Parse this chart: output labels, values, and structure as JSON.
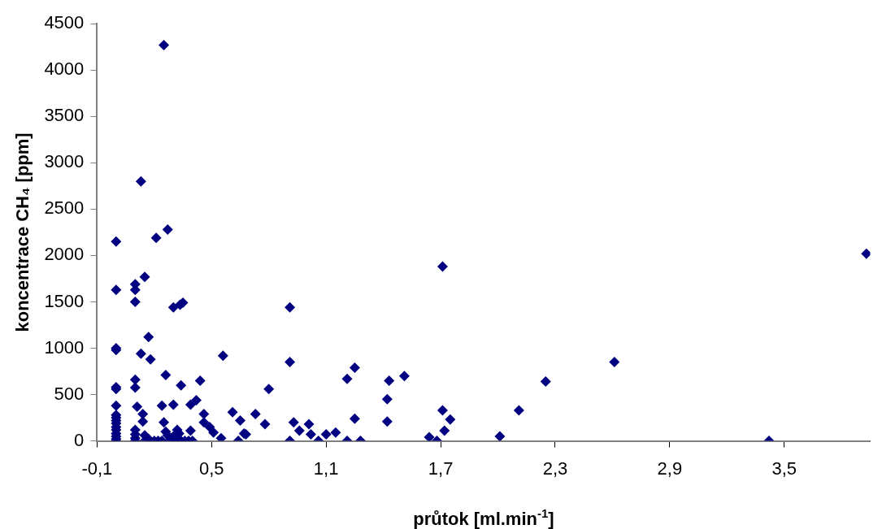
{
  "chart_data": {
    "type": "scatter",
    "xlabel": "průtok [ml.min$^{-1}$]",
    "ylabel": "koncentrace CH₄ [ppm]",
    "xlim": [
      -0.1,
      3.95
    ],
    "xticks": [
      {
        "value": -0.1,
        "label": "-0,1"
      },
      {
        "value": 0.5,
        "label": "0,5"
      },
      {
        "value": 1.1,
        "label": "1,1"
      },
      {
        "value": 1.7,
        "label": "1,7"
      },
      {
        "value": 2.3,
        "label": "2,3"
      },
      {
        "value": 2.9,
        "label": "2,9"
      },
      {
        "value": 3.5,
        "label": "3,5"
      }
    ],
    "ylim": [
      0,
      4500
    ],
    "yticks": [
      0,
      500,
      1000,
      1500,
      2000,
      2500,
      3000,
      3500,
      4000,
      4500
    ],
    "grid": false,
    "legend": false,
    "marker": "diamond",
    "series": [
      {
        "color": "#000080",
        "x": [
          0.25,
          0.13,
          0.0,
          0.21,
          0.27,
          0.15,
          0.0,
          0.1,
          0.1,
          0.1,
          0.3,
          0.335,
          0.35,
          0.91,
          0.0,
          0.0,
          0.17,
          0.13,
          0.18,
          0.56,
          0.91,
          0.26,
          0.34,
          0.44,
          0.0,
          0.0,
          0.1,
          0.1,
          0.8,
          1.21,
          1.25,
          0.0,
          0.24,
          0.3,
          0.39,
          0.42,
          0.11,
          0.14,
          0.14,
          0.46,
          0.61,
          0.73,
          0.65,
          0.46,
          0.25,
          0.78,
          0.93,
          1.01,
          0.49,
          0.51,
          0.55,
          0.96,
          1.02,
          1.1,
          1.15,
          1.25,
          0.91,
          1.06,
          1.21,
          1.28,
          0.64,
          0.67,
          0.68,
          0.39,
          0.32,
          1.71,
          2.61,
          2.25,
          2.11,
          2.01,
          1.71,
          1.75,
          1.72,
          1.64,
          1.68,
          1.43,
          1.51,
          1.42,
          1.42,
          3.42,
          3.93,
          0.0,
          0.0,
          0.0,
          0.0,
          0.0,
          0.0,
          0.0,
          0.0,
          0.0,
          0.0,
          0.1,
          0.1,
          0.1,
          0.1,
          0.15,
          0.17,
          0.15,
          0.2,
          0.22,
          0.24,
          0.26,
          0.27,
          0.28,
          0.3,
          0.32,
          0.34,
          0.36,
          0.38,
          0.4,
          0.3,
          0.33
        ],
        "values": [
          4270,
          2800,
          2150,
          2190,
          2280,
          1770,
          1630,
          1690,
          1630,
          1500,
          1440,
          1470,
          1490,
          1440,
          1000,
          980,
          1120,
          940,
          880,
          920,
          850,
          710,
          600,
          650,
          580,
          560,
          660,
          575,
          560,
          670,
          790,
          380,
          380,
          390,
          390,
          440,
          370,
          290,
          210,
          290,
          310,
          290,
          220,
          200,
          200,
          180,
          200,
          180,
          150,
          90,
          30,
          110,
          70,
          70,
          90,
          240,
          0,
          0,
          0,
          0,
          0,
          80,
          70,
          110,
          120,
          1880,
          850,
          640,
          330,
          50,
          330,
          230,
          110,
          40,
          0,
          650,
          700,
          450,
          210,
          0,
          2020,
          280,
          250,
          220,
          190,
          150,
          120,
          80,
          50,
          20,
          0,
          120,
          70,
          30,
          0,
          60,
          20,
          0,
          0,
          0,
          0,
          100,
          60,
          0,
          0,
          0,
          0,
          0,
          0,
          0,
          50,
          80
        ]
      }
    ]
  }
}
